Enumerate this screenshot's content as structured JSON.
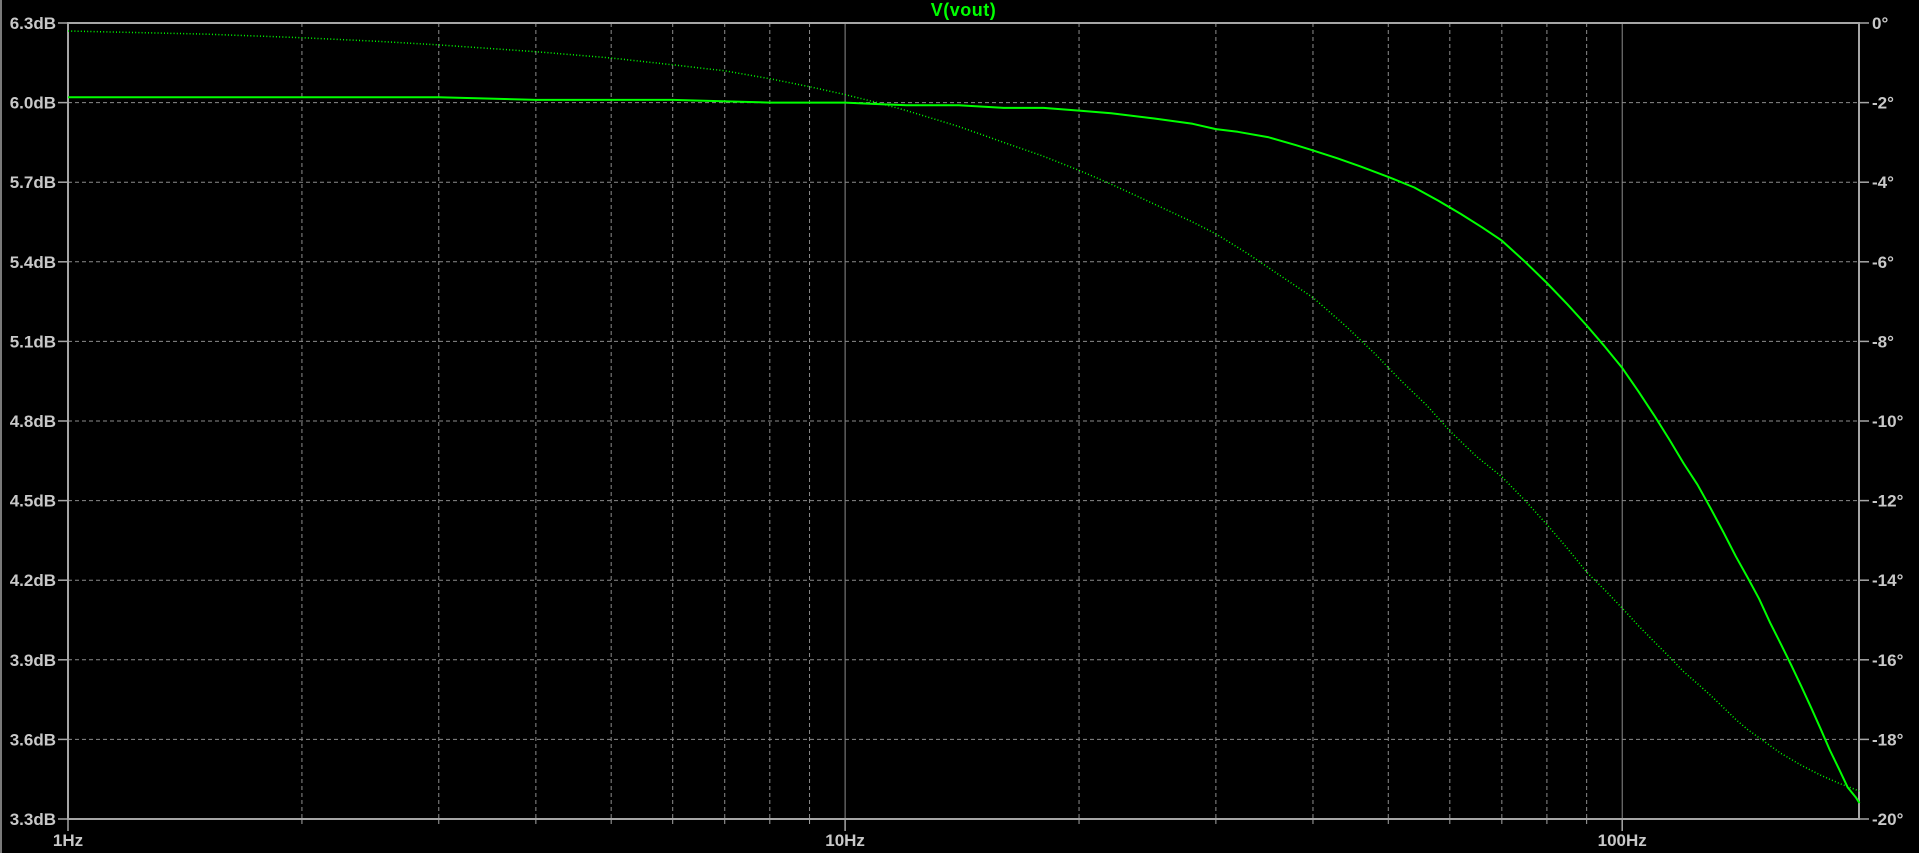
{
  "window": {
    "background": "#000000"
  },
  "chart_data": {
    "type": "line",
    "title": "V(vout)",
    "title_color": "#00ff00",
    "trace_color": "#00ff00",
    "grid_color": "#8c8c8c",
    "border_color": "#a6a6a6",
    "label_color": "#c8c8c8",
    "x_axis": {
      "scale": "log",
      "unit": "Hz",
      "min": 1,
      "max": 201.7,
      "major_ticks": [
        1,
        10,
        100
      ],
      "major_tick_labels": [
        "1Hz",
        "10Hz",
        "100Hz"
      ],
      "minor_ticks": [
        2,
        3,
        4,
        5,
        6,
        7,
        8,
        9,
        20,
        30,
        40,
        50,
        60,
        70,
        80,
        90
      ],
      "grid": true
    },
    "y_axis_left": {
      "unit": "dB",
      "min": 3.3,
      "max": 6.3,
      "step": 0.3,
      "tick_values": [
        6.3,
        6.0,
        5.7,
        5.4,
        5.1,
        4.8,
        4.5,
        4.2,
        3.9,
        3.6,
        3.3
      ],
      "tick_labels": [
        "6.3dB",
        "6.0dB",
        "5.7dB",
        "5.4dB",
        "5.1dB",
        "4.8dB",
        "4.5dB",
        "4.2dB",
        "3.9dB",
        "3.6dB",
        "3.3dB"
      ]
    },
    "y_axis_right": {
      "unit": "deg",
      "min": -20,
      "max": 0,
      "step": 2,
      "tick_values": [
        0,
        -2,
        -4,
        -6,
        -8,
        -10,
        -12,
        -14,
        -16,
        -18,
        -20
      ],
      "tick_labels": [
        "0°",
        "-2°",
        "-4°",
        "-6°",
        "-8°",
        "-10°",
        "-12°",
        "-14°",
        "-16°",
        "-18°",
        "-20°"
      ]
    },
    "series": [
      {
        "name": "V(vout) magnitude",
        "axis": "left",
        "style": "solid",
        "points": [
          [
            1,
            6.02
          ],
          [
            2,
            6.02
          ],
          [
            3,
            6.02
          ],
          [
            4,
            6.01
          ],
          [
            5,
            6.01
          ],
          [
            6,
            6.01
          ],
          [
            8,
            6.0
          ],
          [
            10,
            6.0
          ],
          [
            12,
            5.99
          ],
          [
            14,
            5.99
          ],
          [
            16,
            5.98
          ],
          [
            18,
            5.98
          ],
          [
            20,
            5.97
          ],
          [
            22,
            5.96
          ],
          [
            25,
            5.94
          ],
          [
            28,
            5.92
          ],
          [
            30,
            5.9
          ],
          [
            32,
            5.89
          ],
          [
            35,
            5.87
          ],
          [
            38,
            5.84
          ],
          [
            40,
            5.82
          ],
          [
            43,
            5.79
          ],
          [
            46,
            5.76
          ],
          [
            50,
            5.72
          ],
          [
            54,
            5.68
          ],
          [
            58,
            5.63
          ],
          [
            62,
            5.58
          ],
          [
            66,
            5.53
          ],
          [
            70,
            5.48
          ],
          [
            75,
            5.4
          ],
          [
            80,
            5.32
          ],
          [
            85,
            5.24
          ],
          [
            90,
            5.16
          ],
          [
            95,
            5.08
          ],
          [
            100,
            5.0
          ],
          [
            105,
            4.91
          ],
          [
            110,
            4.82
          ],
          [
            115,
            4.73
          ],
          [
            120,
            4.64
          ],
          [
            125,
            4.56
          ],
          [
            130,
            4.47
          ],
          [
            135,
            4.38
          ],
          [
            140,
            4.29
          ],
          [
            145,
            4.21
          ],
          [
            150,
            4.13
          ],
          [
            155,
            4.04
          ],
          [
            160,
            3.96
          ],
          [
            165,
            3.88
          ],
          [
            170,
            3.8
          ],
          [
            175,
            3.72
          ],
          [
            180,
            3.64
          ],
          [
            185,
            3.56
          ],
          [
            190,
            3.49
          ],
          [
            195,
            3.42
          ],
          [
            200,
            3.38
          ],
          [
            202,
            3.36
          ]
        ]
      },
      {
        "name": "V(vout) phase",
        "axis": "right",
        "style": "dotted",
        "points": [
          [
            1,
            -0.2
          ],
          [
            1.5,
            -0.28
          ],
          [
            2,
            -0.37
          ],
          [
            2.5,
            -0.46
          ],
          [
            3,
            -0.55
          ],
          [
            4,
            -0.72
          ],
          [
            5,
            -0.88
          ],
          [
            6,
            -1.05
          ],
          [
            7,
            -1.2
          ],
          [
            8,
            -1.4
          ],
          [
            9,
            -1.6
          ],
          [
            10,
            -1.8
          ],
          [
            11,
            -2.0
          ],
          [
            12,
            -2.2
          ],
          [
            14,
            -2.6
          ],
          [
            16,
            -3.0
          ],
          [
            18,
            -3.35
          ],
          [
            20,
            -3.7
          ],
          [
            22,
            -4.05
          ],
          [
            25,
            -4.55
          ],
          [
            28,
            -5.0
          ],
          [
            30,
            -5.3
          ],
          [
            33,
            -5.8
          ],
          [
            36,
            -6.3
          ],
          [
            40,
            -6.9
          ],
          [
            44,
            -7.6
          ],
          [
            48,
            -8.3
          ],
          [
            52,
            -9.0
          ],
          [
            56,
            -9.6
          ],
          [
            60,
            -10.25
          ],
          [
            65,
            -10.9
          ],
          [
            70,
            -11.4
          ],
          [
            75,
            -12.0
          ],
          [
            80,
            -12.6
          ],
          [
            85,
            -13.2
          ],
          [
            90,
            -13.8
          ],
          [
            95,
            -14.25
          ],
          [
            100,
            -14.7
          ],
          [
            105,
            -15.15
          ],
          [
            110,
            -15.55
          ],
          [
            116,
            -16.0
          ],
          [
            120,
            -16.3
          ],
          [
            125,
            -16.6
          ],
          [
            130,
            -16.9
          ],
          [
            135,
            -17.2
          ],
          [
            140,
            -17.5
          ],
          [
            145,
            -17.75
          ],
          [
            151,
            -18.0
          ],
          [
            160,
            -18.35
          ],
          [
            170,
            -18.65
          ],
          [
            180,
            -18.9
          ],
          [
            190,
            -19.1
          ],
          [
            196,
            -19.2
          ],
          [
            202,
            -19.3
          ]
        ]
      }
    ]
  }
}
